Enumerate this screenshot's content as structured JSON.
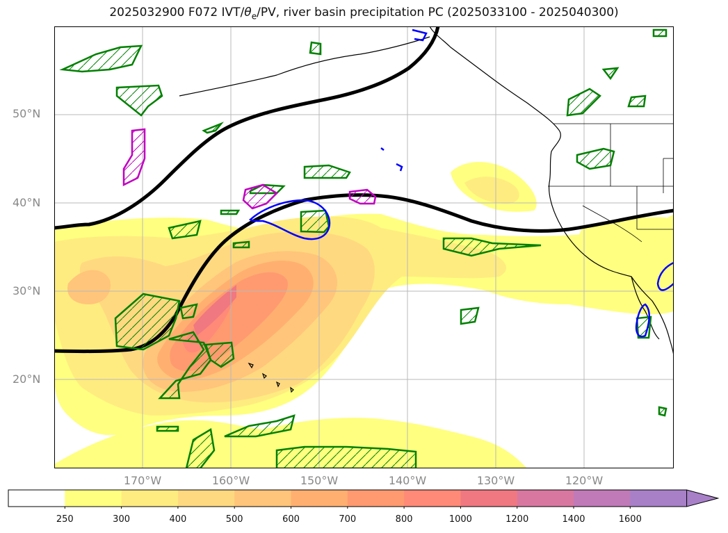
{
  "title": {
    "prefix": "2025032900 F072 IVT/",
    "theta": "θ",
    "theta_sub": "e",
    "suffix": "/PV, river basin precipitation PC (2025033100 - 2025040300)"
  },
  "lat_labels": [
    "50°N",
    "40°N",
    "30°N",
    "20°N"
  ],
  "lon_labels": [
    "170°W",
    "160°W",
    "150°W",
    "140°W",
    "130°W",
    "120°W"
  ],
  "colorbar": {
    "levels": [
      "250",
      "300",
      "400",
      "500",
      "600",
      "700",
      "800",
      "1000",
      "1200",
      "1400",
      "1600"
    ],
    "colors": [
      "#ffffff",
      "#ffff80",
      "#ffec80",
      "#ffd980",
      "#ffc57a",
      "#ffb070",
      "#ff9a70",
      "#ff8a78",
      "#f07880",
      "#d878a0",
      "#c07ab8",
      "#a880c8"
    ],
    "extend": "max"
  },
  "legend_colors": {
    "jet_contour": "#000000",
    "green_hatched": "#008000",
    "blue_contour": "#0000ff",
    "magenta_contour": "#c000c0"
  }
}
